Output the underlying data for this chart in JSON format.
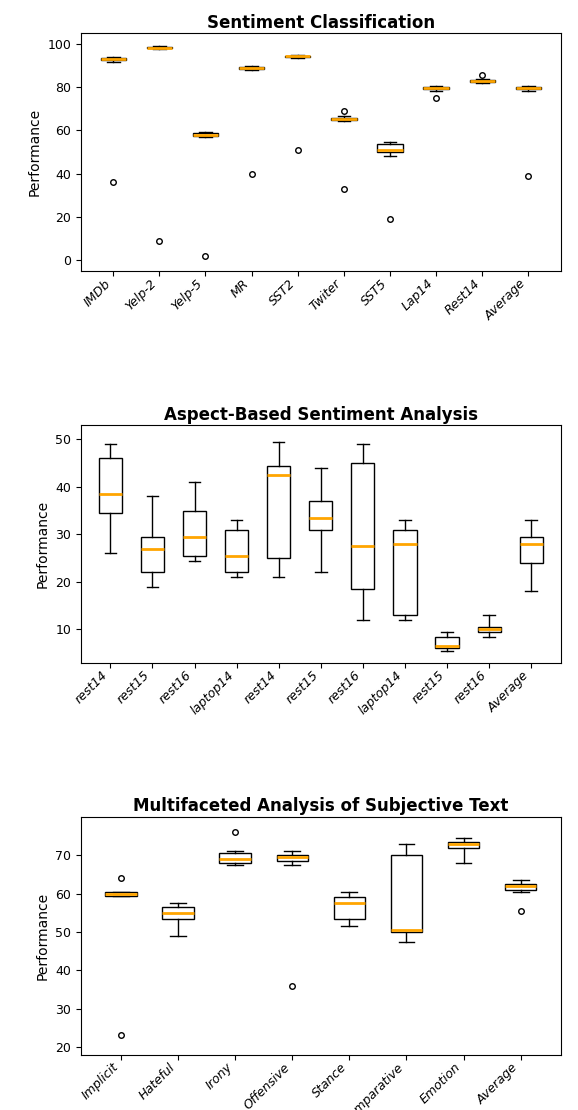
{
  "plot1": {
    "title": "Sentiment Classification",
    "ylabel": "Performance",
    "categories": [
      "IMDb",
      "Yelp-2",
      "Yelp-5",
      "MR",
      "SST2",
      "Twiter",
      "SST5",
      "Lap14",
      "Rest14",
      "Average"
    ],
    "boxes": [
      {
        "whislo": 91.5,
        "q1": 92.5,
        "med": 93.0,
        "q3": 93.5,
        "whishi": 94.0,
        "fliers": [
          36.0
        ]
      },
      {
        "whislo": 97.5,
        "q1": 98.0,
        "med": 98.3,
        "q3": 98.6,
        "whishi": 98.9,
        "fliers": [
          9.0
        ]
      },
      {
        "whislo": 57.0,
        "q1": 57.5,
        "med": 58.0,
        "q3": 58.7,
        "whishi": 59.2,
        "fliers": [
          2.0
        ]
      },
      {
        "whislo": 88.0,
        "q1": 88.5,
        "med": 89.0,
        "q3": 89.5,
        "whishi": 90.0,
        "fliers": [
          40.0
        ]
      },
      {
        "whislo": 93.5,
        "q1": 94.0,
        "med": 94.3,
        "q3": 94.6,
        "whishi": 94.9,
        "fliers": [
          51.0
        ]
      },
      {
        "whislo": 64.5,
        "q1": 65.0,
        "med": 65.5,
        "q3": 66.0,
        "whishi": 66.5,
        "fliers": [
          33.0,
          69.0
        ]
      },
      {
        "whislo": 48.0,
        "q1": 50.0,
        "med": 51.0,
        "q3": 53.5,
        "whishi": 54.5,
        "fliers": [
          19.0
        ]
      },
      {
        "whislo": 78.5,
        "q1": 79.0,
        "med": 79.5,
        "q3": 80.0,
        "whishi": 80.5,
        "fliers": [
          75.0
        ]
      },
      {
        "whislo": 82.0,
        "q1": 82.5,
        "med": 83.0,
        "q3": 83.5,
        "whishi": 84.0,
        "fliers": [
          85.5
        ]
      },
      {
        "whislo": 78.5,
        "q1": 79.0,
        "med": 79.5,
        "q3": 80.0,
        "whishi": 80.5,
        "fliers": [
          39.0
        ]
      }
    ],
    "ylim": [
      -5,
      105
    ],
    "yticks": [
      0,
      20,
      40,
      60,
      80,
      100
    ]
  },
  "plot2": {
    "title": "Aspect-Based Sentiment Analysis",
    "ylabel": "Performance",
    "categories": [
      "rest14",
      "rest15",
      "rest16",
      "laptop14",
      "rest14",
      "rest15",
      "rest16",
      "laptop14",
      "rest15",
      "rest16",
      "Average"
    ],
    "boxes": [
      {
        "whislo": 26.0,
        "q1": 34.5,
        "med": 38.5,
        "q3": 46.0,
        "whishi": 49.0,
        "fliers": []
      },
      {
        "whislo": 19.0,
        "q1": 22.0,
        "med": 27.0,
        "q3": 29.5,
        "whishi": 38.0,
        "fliers": []
      },
      {
        "whislo": 24.5,
        "q1": 25.5,
        "med": 29.5,
        "q3": 35.0,
        "whishi": 41.0,
        "fliers": []
      },
      {
        "whislo": 21.0,
        "q1": 22.0,
        "med": 25.5,
        "q3": 31.0,
        "whishi": 33.0,
        "fliers": []
      },
      {
        "whislo": 21.0,
        "q1": 25.0,
        "med": 42.5,
        "q3": 44.5,
        "whishi": 49.5,
        "fliers": []
      },
      {
        "whislo": 22.0,
        "q1": 31.0,
        "med": 33.5,
        "q3": 37.0,
        "whishi": 44.0,
        "fliers": []
      },
      {
        "whislo": 12.0,
        "q1": 18.5,
        "med": 27.5,
        "q3": 45.0,
        "whishi": 49.0,
        "fliers": []
      },
      {
        "whislo": 12.0,
        "q1": 13.0,
        "med": 28.0,
        "q3": 31.0,
        "whishi": 33.0,
        "fliers": []
      },
      {
        "whislo": 5.5,
        "q1": 6.0,
        "med": 6.5,
        "q3": 8.5,
        "whishi": 9.5,
        "fliers": []
      },
      {
        "whislo": 8.5,
        "q1": 9.5,
        "med": 10.0,
        "q3": 10.5,
        "whishi": 13.0,
        "fliers": []
      },
      {
        "whislo": 18.0,
        "q1": 24.0,
        "med": 28.0,
        "q3": 29.5,
        "whishi": 33.0,
        "fliers": []
      }
    ],
    "ylim": [
      3,
      53
    ],
    "yticks": [
      10,
      20,
      30,
      40,
      50
    ]
  },
  "plot3": {
    "title": "Multifaceted Analysis of Subjective Text",
    "ylabel": "Performance",
    "categories": [
      "Implicit",
      "Hateful",
      "Irony",
      "Offensive",
      "Stance",
      "Comparative",
      "Emotion",
      "Average"
    ],
    "boxes": [
      {
        "whislo": 59.5,
        "q1": 59.5,
        "med": 60.0,
        "q3": 60.5,
        "whishi": 60.5,
        "fliers": [
          23.0,
          64.0
        ]
      },
      {
        "whislo": 49.0,
        "q1": 53.5,
        "med": 55.0,
        "q3": 56.5,
        "whishi": 57.5,
        "fliers": []
      },
      {
        "whislo": 67.5,
        "q1": 68.0,
        "med": 69.0,
        "q3": 70.5,
        "whishi": 71.0,
        "fliers": [
          76.0
        ]
      },
      {
        "whislo": 67.5,
        "q1": 68.5,
        "med": 69.5,
        "q3": 70.0,
        "whishi": 71.0,
        "fliers": [
          36.0
        ]
      },
      {
        "whislo": 51.5,
        "q1": 53.5,
        "med": 57.5,
        "q3": 59.0,
        "whishi": 60.5,
        "fliers": []
      },
      {
        "whislo": 47.5,
        "q1": 50.0,
        "med": 50.5,
        "q3": 70.0,
        "whishi": 73.0,
        "fliers": []
      },
      {
        "whislo": 68.0,
        "q1": 72.0,
        "med": 73.0,
        "q3": 73.5,
        "whishi": 74.5,
        "fliers": []
      },
      {
        "whislo": 60.5,
        "q1": 61.0,
        "med": 62.0,
        "q3": 62.5,
        "whishi": 63.5,
        "fliers": [
          55.5
        ]
      }
    ],
    "ylim": [
      18,
      80
    ],
    "yticks": [
      20,
      30,
      40,
      50,
      60,
      70
    ]
  },
  "median_color": "#FFA500",
  "box_facecolor": "white",
  "box_edgecolor": "black",
  "flier_marker": "o",
  "flier_markerfacecolor": "white",
  "flier_markeredgecolor": "black",
  "flier_markersize": 4,
  "figsize": [
    5.78,
    11.1
  ],
  "dpi": 100
}
